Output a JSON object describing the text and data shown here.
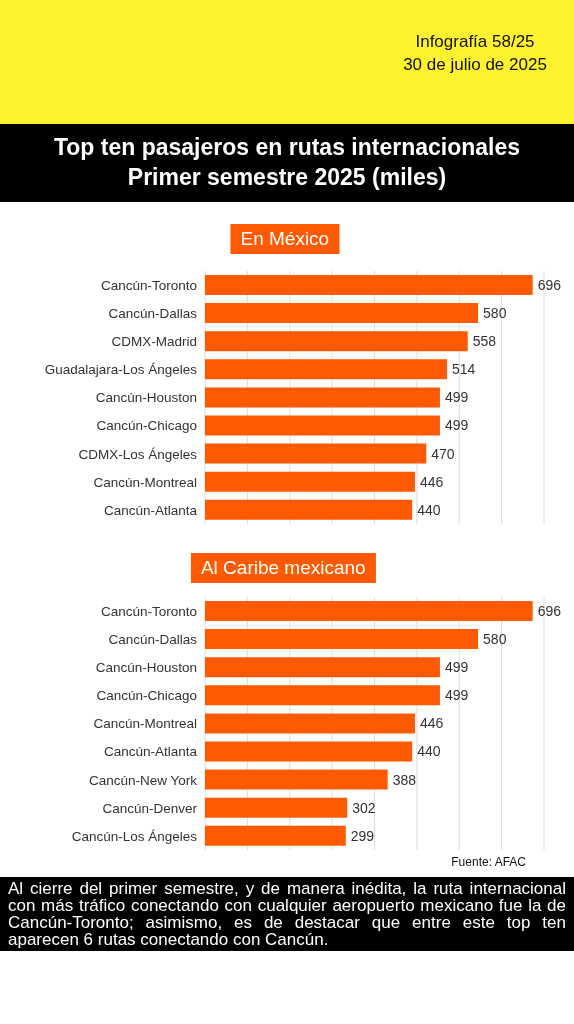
{
  "chart_data": [
    {
      "type": "bar",
      "orientation": "horizontal",
      "title": "Top ten pasajeros en rutas internacionales\nPrimer semestre 2025 (miles)",
      "subtitle": "En México",
      "annotations": [
        "Infografía 58/25\n30 de julio de 2025"
      ],
      "categories": [
        "Cancún-Toronto",
        "Cancún-Dallas",
        "CDMX-Madrid",
        "Guadalajara-Los Ángeles",
        "Cancún-Houston",
        "Cancún-Chicago",
        "CDMX-Los Ángeles",
        "Cancún-Montreal",
        "Cancún-Atlanta"
      ],
      "values": [
        696,
        580,
        558,
        514,
        499,
        499,
        470,
        446,
        440
      ],
      "color": "#ff5a00",
      "data_labels": true,
      "grid": "x",
      "tick_labels": "y"
    },
    {
      "type": "bar",
      "orientation": "horizontal",
      "title": "Al Caribe mexicano",
      "annotations": [
        "Fuente: AFAC",
        "Al cierre del primer semestre, y de manera inédita, la ruta internacional con más tráfico conectando con cualquier aeropuerto mexicano fue la de Cancún-Toronto; asimismo, es de destacar que entre este top ten aparecen 6 rutas conectando con Cancún."
      ],
      "categories": [
        "Cancún-Toronto",
        "Cancún-Dallas",
        "Cancún-Houston",
        "Cancún-Chicago",
        "Cancún-Montreal",
        "Cancún-Atlanta",
        "Cancún-New York",
        "Cancún-Denver",
        "Cancún-Los Ángeles"
      ],
      "values": [
        696,
        580,
        499,
        499,
        446,
        440,
        388,
        302,
        299
      ],
      "color": "#ff5a00",
      "data_labels": true,
      "grid": "x",
      "tick_labels": "y"
    }
  ]
}
